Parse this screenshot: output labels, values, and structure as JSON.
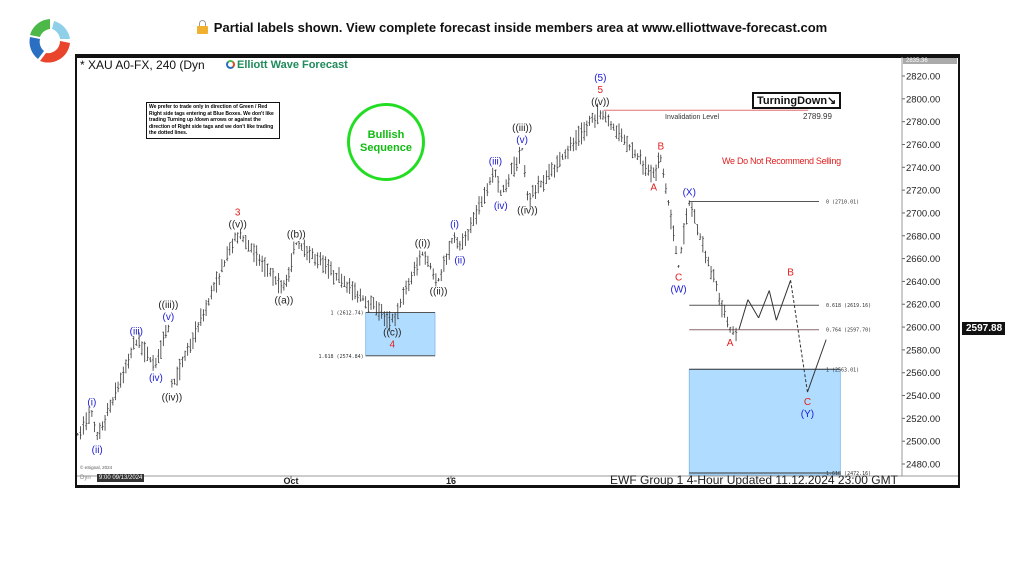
{
  "banner": {
    "text": "Partial labels shown. View complete forecast inside members area at www.elliottwave-forecast.com",
    "lock_icon": "lock-icon",
    "logo_icon": "elliott-wave-logo-icon"
  },
  "chart_header": {
    "symbol": "* XAU A0-FX, 240 (Dyn",
    "brand": "Elliott Wave Forecast"
  },
  "disclaimer": "We prefer to trade only in direction of Green / Red Right side tags entering at Blue Boxes. We don't like trading Turning up /down arrows or against the direction of Right side tags and we don't like trading the dotted lines.",
  "bullish_tag": {
    "line1": "Bullish",
    "line2": "Sequence",
    "color": "#22dd22"
  },
  "turning_tag": "TurningDown↘",
  "no_sell": "We Do Not Recommend Selling",
  "footer": "EWF Group 1 4-Hour Updated 11.12.2024 23:00 GMT",
  "copyright": "© eSignal, 2024",
  "dyn_label": "Dyn",
  "cursor_time": "9:00 09/13/2024",
  "chart_data": {
    "type": "line",
    "title": "",
    "xlabel": "",
    "ylabel": "",
    "ylim": [
      2465,
      2837
    ],
    "y_ticks": [
      "2820.00",
      "2800.00",
      "2780.00",
      "2760.00",
      "2740.00",
      "2720.00",
      "2700.00",
      "2680.00",
      "2660.00",
      "2640.00",
      "2620.00",
      "2600.00",
      "2580.00",
      "2560.00",
      "2540.00",
      "2520.00",
      "2500.00",
      "2480.00"
    ],
    "x_ticks": [
      {
        "date": "2024-10-01",
        "label": "Oct"
      },
      {
        "date": "2024-10-16",
        "label": "16"
      }
    ],
    "xlim": [
      "2024-09-11",
      "2024-11-26"
    ],
    "last_price": "2597.88",
    "top_price": "2835.36",
    "colors": {
      "blue": "#1a1ad8",
      "red": "#e02020",
      "black": "#222222",
      "box": "#b0dcff"
    },
    "price_pivots": [
      {
        "date": "2024-09-11T00:00",
        "price": 2505
      },
      {
        "date": "2024-09-12T08:00",
        "price": 2527,
        "side": "above",
        "labels": [
          {
            "text": "(i)",
            "color": "blue"
          }
        ]
      },
      {
        "date": "2024-09-12T20:00",
        "price": 2501,
        "side": "below",
        "labels": [
          {
            "text": "(ii)",
            "color": "blue"
          }
        ]
      },
      {
        "date": "2024-09-16T12:00",
        "price": 2589,
        "side": "above",
        "labels": [
          {
            "text": "(iii)",
            "color": "blue"
          }
        ]
      },
      {
        "date": "2024-09-18T08:00",
        "price": 2564,
        "side": "below",
        "labels": [
          {
            "text": "(iv)",
            "color": "blue"
          }
        ]
      },
      {
        "date": "2024-09-19T12:00",
        "price": 2602,
        "side": "above",
        "labels": [
          {
            "text": "(v)",
            "color": "blue"
          },
          {
            "text": "((iii))",
            "color": "black"
          }
        ]
      },
      {
        "date": "2024-09-19T20:00",
        "price": 2547,
        "side": "below",
        "labels": [
          {
            "text": "((iv))",
            "color": "black"
          }
        ]
      },
      {
        "date": "2024-09-26T00:00",
        "price": 2683,
        "side": "above",
        "labels": [
          {
            "text": "((v))",
            "color": "black"
          },
          {
            "text": "3",
            "color": "red"
          }
        ]
      },
      {
        "date": "2024-09-30T08:00",
        "price": 2632,
        "side": "below",
        "labels": [
          {
            "text": "((a))",
            "color": "black"
          }
        ]
      },
      {
        "date": "2024-10-01T12:00",
        "price": 2674,
        "side": "above",
        "labels": [
          {
            "text": "((b))",
            "color": "black"
          }
        ]
      },
      {
        "date": "2024-10-10T12:00",
        "price": 2604,
        "side": "below",
        "labels": [
          {
            "text": "((c))",
            "color": "black"
          },
          {
            "text": "4",
            "color": "red"
          }
        ]
      },
      {
        "date": "2024-10-13T08:00",
        "price": 2666,
        "side": "above",
        "labels": [
          {
            "text": "((i))",
            "color": "black"
          }
        ]
      },
      {
        "date": "2024-10-14T20:00",
        "price": 2640,
        "side": "below",
        "labels": [
          {
            "text": "((ii))",
            "color": "black"
          }
        ]
      },
      {
        "date": "2024-10-16T08:00",
        "price": 2683,
        "side": "above",
        "labels": [
          {
            "text": "(i)",
            "color": "blue"
          }
        ]
      },
      {
        "date": "2024-10-16T20:00",
        "price": 2667,
        "side": "below",
        "labels": [
          {
            "text": "(ii)",
            "color": "blue"
          }
        ]
      },
      {
        "date": "2024-10-20T04:00",
        "price": 2738,
        "side": "above",
        "labels": [
          {
            "text": "(iii)",
            "color": "blue"
          }
        ]
      },
      {
        "date": "2024-10-20T16:00",
        "price": 2715,
        "side": "below",
        "labels": [
          {
            "text": "(iv)",
            "color": "blue"
          }
        ]
      },
      {
        "date": "2024-10-22T16:00",
        "price": 2757,
        "side": "above",
        "labels": [
          {
            "text": "(v)",
            "color": "blue"
          },
          {
            "text": "((iii))",
            "color": "black"
          }
        ]
      },
      {
        "date": "2024-10-23T04:00",
        "price": 2711,
        "side": "below",
        "labels": [
          {
            "text": "((iv))",
            "color": "black"
          }
        ]
      },
      {
        "date": "2024-10-30T00:00",
        "price": 2790,
        "side": "above",
        "labels": [
          {
            "text": "((v))",
            "color": "black"
          },
          {
            "text": "5",
            "color": "red"
          },
          {
            "text": "(5)",
            "color": "blue"
          }
        ]
      },
      {
        "date": "2024-11-04T00:00",
        "price": 2731,
        "side": "below",
        "labels": [
          {
            "text": "A",
            "color": "red"
          }
        ]
      },
      {
        "date": "2024-11-04T16:00",
        "price": 2751,
        "side": "above",
        "labels": [
          {
            "text": "B",
            "color": "red"
          }
        ]
      },
      {
        "date": "2024-11-06T08:00",
        "price": 2652,
        "side": "below",
        "labels": [
          {
            "text": "C",
            "color": "red"
          },
          {
            "text": "(W)",
            "color": "blue"
          }
        ]
      },
      {
        "date": "2024-11-07T08:00",
        "price": 2711,
        "side": "above",
        "labels": [
          {
            "text": "(X)",
            "color": "blue"
          }
        ]
      },
      {
        "date": "2024-11-11T04:00",
        "price": 2595,
        "side": "below",
        "labels": [
          {
            "text": "A",
            "color": "red"
          }
        ]
      },
      {
        "date": "2024-11-12T00:00",
        "price": 2598
      }
    ],
    "projection": [
      {
        "date": "2024-11-12T00:00",
        "price": 2598
      },
      {
        "date": "2024-11-12T20:00",
        "price": 2624
      },
      {
        "date": "2024-11-13T20:00",
        "price": 2608
      },
      {
        "date": "2024-11-14T20:00",
        "price": 2632
      },
      {
        "date": "2024-11-15T12:00",
        "price": 2606
      },
      {
        "date": "2024-11-16T20:00",
        "price": 2641,
        "side": "above",
        "labels": [
          {
            "text": "B",
            "color": "red"
          }
        ]
      },
      {
        "date": "2024-11-18T10:00",
        "price": 2543,
        "side": "below",
        "labels": [
          {
            "text": "C",
            "color": "red"
          },
          {
            "text": "(Y)",
            "color": "blue"
          }
        ],
        "dashed_in": true
      },
      {
        "date": "2024-11-20T04:00",
        "price": 2589
      }
    ],
    "levels": [
      {
        "label": "Invalidation Level",
        "value_label": "2789.99",
        "price": 2789.99,
        "from": "2024-10-30T08:00",
        "to": "2024-11-18T12:00",
        "color": "#e07070"
      },
      {
        "label": "0 (2710.01)",
        "price": 2710.01,
        "from": "2024-11-07T08:00",
        "to": "2024-11-19T12:00",
        "color": "#555555"
      },
      {
        "label": "0.618 (2619.16)",
        "price": 2619.16,
        "from": "2024-11-07T08:00",
        "to": "2024-11-19T12:00",
        "color": "#555555"
      },
      {
        "label": "0.764 (2597.70)",
        "price": 2597.7,
        "from": "2024-11-07T08:00",
        "to": "2024-11-19T12:00",
        "color": "#8a6a6a"
      },
      {
        "label": "1 (2563.01)",
        "price": 2563.01,
        "from": "2024-11-07T08:00",
        "to": "2024-11-21T12:00",
        "color": "#333333"
      },
      {
        "label": "1.618 (2472.16)",
        "price": 2472.16,
        "from": "2024-11-07T08:00",
        "to": "2024-11-21T12:00",
        "color": "#333333"
      },
      {
        "label": "1 (2612.74)",
        "price": 2612.74,
        "from": "2024-10-08T00:00",
        "to": "2024-10-14T12:00",
        "color": "#555555"
      },
      {
        "label": "1.618 (2574.84)",
        "price": 2574.84,
        "from": "2024-10-08T00:00",
        "to": "2024-10-14T12:00",
        "color": "#555555"
      }
    ],
    "blue_boxes": [
      {
        "top": 2612.74,
        "bottom": 2574.84,
        "from": "2024-10-08T00:00",
        "to": "2024-10-14T12:00"
      },
      {
        "top": 2563.01,
        "bottom": 2465,
        "from": "2024-11-07T08:00",
        "to": "2024-11-21T12:00"
      }
    ]
  }
}
